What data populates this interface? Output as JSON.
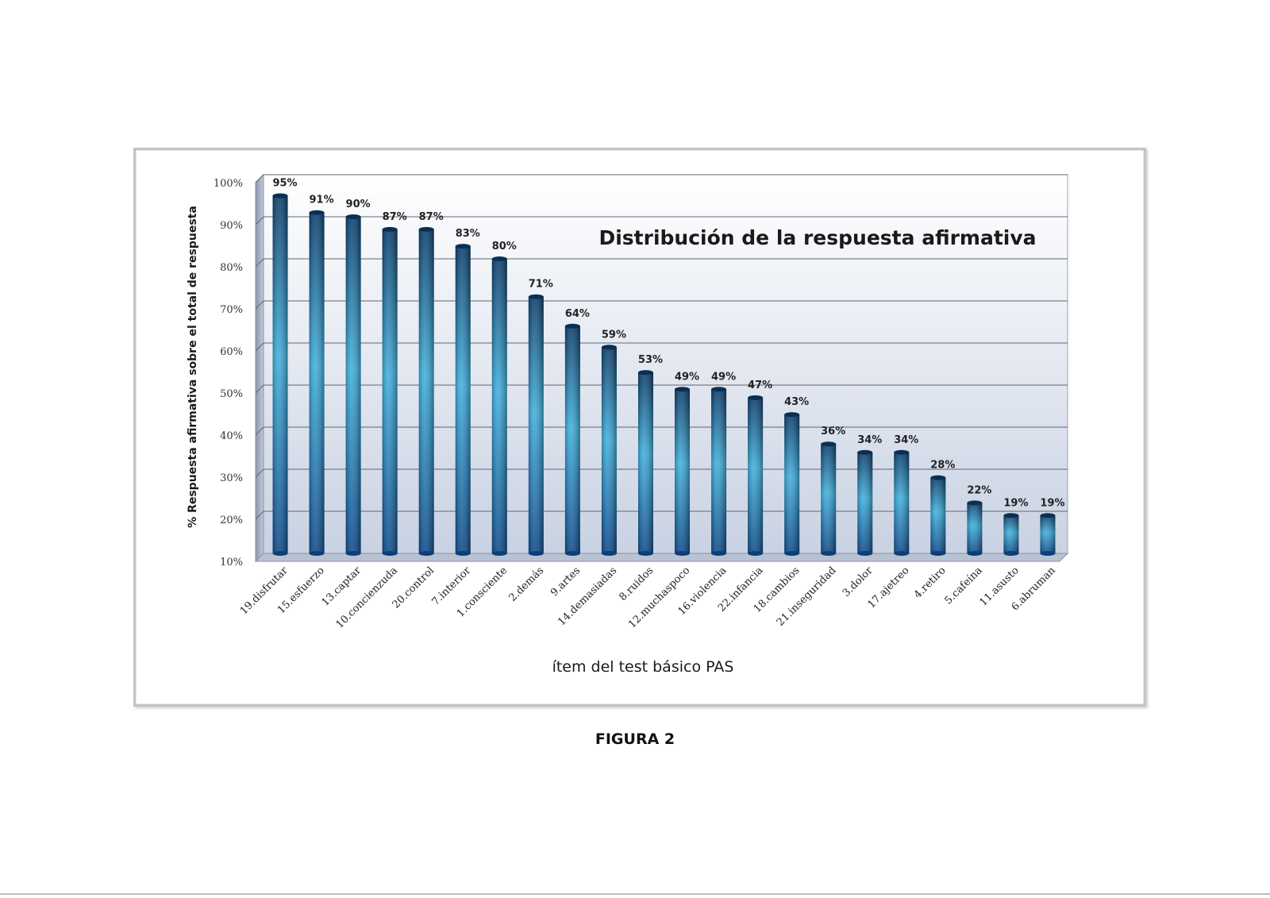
{
  "caption": "FIGURA 2",
  "chart_data": {
    "type": "bar",
    "title": "Distribución de la respuesta afirmativa",
    "xlabel": "ítem del test básico PAS",
    "ylabel": "% Respuesta afirmativa sobre el total de respuesta",
    "ylim": [
      10,
      100
    ],
    "yticks": [
      "10%",
      "20%",
      "30%",
      "40%",
      "50%",
      "60%",
      "70%",
      "80%",
      "90%",
      "100%"
    ],
    "grid": true,
    "categories": [
      "19.disfrutar",
      "15.esfuerzo",
      "13.captar",
      "10.concienzuda",
      "20.control",
      "7.interior",
      "1.consciente",
      "2.demás",
      "9.artes",
      "14.demasiadas",
      "8.ruidos",
      "12.muchaspoco",
      "16.violencia",
      "22.infancia",
      "18.cambios",
      "21.inseguridad",
      "3.dolor",
      "17.ajetreo",
      "4.retiro",
      "5.cafeína",
      "11.asusto",
      "6.abruman"
    ],
    "values": [
      95,
      91,
      90,
      87,
      87,
      83,
      80,
      71,
      64,
      59,
      53,
      49,
      49,
      47,
      43,
      36,
      34,
      34,
      28,
      22,
      19,
      19
    ],
    "value_labels": [
      "95%",
      "91%",
      "90%",
      "87%",
      "87%",
      "83%",
      "80%",
      "71%",
      "64%",
      "59%",
      "53%",
      "49%",
      "49%",
      "47%",
      "43%",
      "36%",
      "34%",
      "34%",
      "28%",
      "22%",
      "19%",
      "19%"
    ],
    "colors": {
      "bar_top": "#0b3d6b",
      "bar_mid": "#3fb0dd",
      "bar_bottom": "#0d4a8a",
      "wall_top": "#ffffff",
      "wall_bottom": "#c9d2e3"
    }
  }
}
